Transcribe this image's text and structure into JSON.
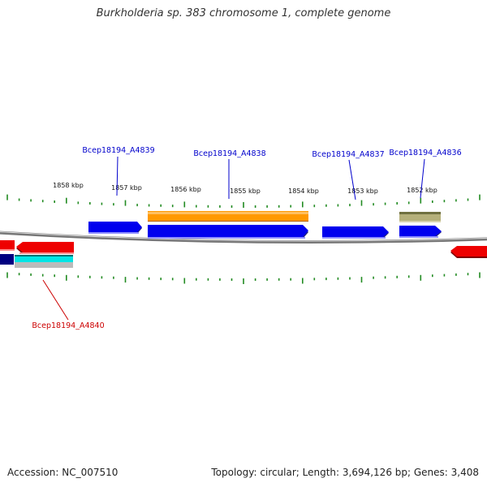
{
  "title": "Burkholderia sp. 383 chromosome 1, complete genome",
  "footer": {
    "accession": "Accession: NC_007510",
    "summary": "Topology: circular; Length: 3,694,126 bp; Genes: 3,408"
  },
  "colors": {
    "forward_cds": "#0000ee",
    "reverse_cds": "#ee0000",
    "orange_feature": "#ff9900",
    "olive_feature": "#b5b07a",
    "cyan_feature": "#00e5e5",
    "navy_feature": "#000080",
    "tick_green": "#228b22",
    "label_blue": "#0000cc",
    "label_red": "#cc0000",
    "backbone": "#888888"
  },
  "ruler": {
    "labels": [
      "1858 kbp",
      "1857 kbp",
      "1856 kbp",
      "1855 kbp",
      "1854 kbp",
      "1853 kbp",
      "1852 kbp"
    ]
  },
  "gene_labels": {
    "a4839": "Bcep18194_A4839",
    "a4838": "Bcep18194_A4838",
    "a4837": "Bcep18194_A4837",
    "a4836": "Bcep18194_A4836",
    "a4840": "Bcep18194_A4840"
  }
}
